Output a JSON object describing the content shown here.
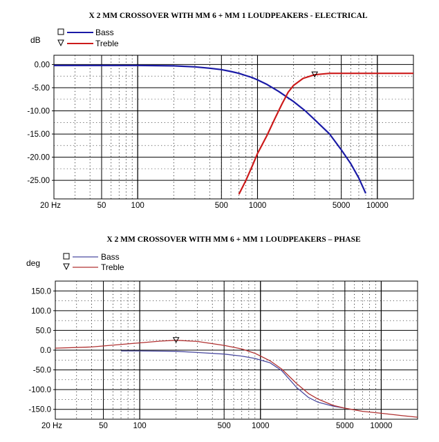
{
  "chart_data": [
    {
      "type": "line",
      "title": "X 2 MM CROSSOVER WITH MM 6 + MM 1 LOUDPEAKERS - ELECTRICAL",
      "ylabel": "dB",
      "xscale": "log",
      "xlim": [
        20,
        20000
      ],
      "ylim": [
        -29,
        2
      ],
      "grid": true,
      "legend_position": "top-left",
      "x_tick_labels": [
        {
          "value": 20,
          "label": "20 Hz"
        },
        {
          "value": 50,
          "label": "50"
        },
        {
          "value": 100,
          "label": "100"
        },
        {
          "value": 500,
          "label": "500"
        },
        {
          "value": 1000,
          "label": "1000"
        },
        {
          "value": 5000,
          "label": "5000"
        },
        {
          "value": 10000,
          "label": "10000"
        }
      ],
      "y_tick_labels": [
        {
          "value": 0,
          "label": "0.00"
        },
        {
          "value": -5,
          "label": "-5.00"
        },
        {
          "value": -10,
          "label": "-10.00"
        },
        {
          "value": -15,
          "label": "-15.00"
        },
        {
          "value": -20,
          "label": "-20.00"
        },
        {
          "value": -25,
          "label": "-25.00"
        }
      ],
      "series": [
        {
          "name": "Bass",
          "color": "#1a1aa6",
          "marker": "square",
          "x": [
            20,
            100,
            200,
            300,
            400,
            500,
            600,
            700,
            800,
            900,
            1000,
            1200,
            1500,
            2000,
            2500,
            3000,
            4000,
            5000,
            6000,
            7000,
            8000
          ],
          "y": [
            -0.2,
            -0.2,
            -0.3,
            -0.5,
            -0.8,
            -1.1,
            -1.5,
            -1.9,
            -2.4,
            -2.8,
            -3.3,
            -4.3,
            -5.8,
            -8.0,
            -10.0,
            -11.9,
            -15.0,
            -18.4,
            -21.4,
            -24.5,
            -27.8
          ]
        },
        {
          "name": "Treble",
          "color": "#cc1a1a",
          "marker": "triangle",
          "x": [
            700,
            800,
            900,
            1000,
            1200,
            1400,
            1600,
            1800,
            2000,
            2400,
            3000,
            4000,
            5000,
            10000,
            20000
          ],
          "y": [
            -28.0,
            -25.0,
            -22.0,
            -19.2,
            -15.3,
            -11.6,
            -8.5,
            -6.0,
            -4.5,
            -3.0,
            -2.2,
            -1.9,
            -1.9,
            -1.9,
            -1.9
          ]
        }
      ]
    },
    {
      "type": "line",
      "title": "X 2 MM CROSSOVER WITH MM 6 + MM 1 LOUDPEAKERS – PHASE",
      "ylabel": "deg",
      "xscale": "log",
      "xlim": [
        20,
        20000
      ],
      "ylim": [
        -175,
        175
      ],
      "grid": true,
      "legend_position": "top-left",
      "x_tick_labels": [
        {
          "value": 20,
          "label": "20 Hz"
        },
        {
          "value": 50,
          "label": "50"
        },
        {
          "value": 100,
          "label": "100"
        },
        {
          "value": 500,
          "label": "500"
        },
        {
          "value": 1000,
          "label": "1000"
        },
        {
          "value": 5000,
          "label": "5000"
        },
        {
          "value": 10000,
          "label": "10000"
        }
      ],
      "y_tick_labels": [
        {
          "value": 150,
          "label": "150.0"
        },
        {
          "value": 100,
          "label": "100.0"
        },
        {
          "value": 50,
          "label": "50.0"
        },
        {
          "value": 0,
          "label": "0.0"
        },
        {
          "value": -50,
          "label": "-50.0"
        },
        {
          "value": -100,
          "label": "-100.0"
        },
        {
          "value": -150,
          "label": "-150.0"
        }
      ],
      "series": [
        {
          "name": "Bass",
          "color": "#4a4aa0",
          "marker": "square",
          "x": [
            70,
            100,
            200,
            300,
            500,
            700,
            900,
            1200,
            1500,
            2000,
            2500,
            3000,
            4000,
            5000
          ],
          "y": [
            -2,
            -2,
            -3,
            -6,
            -10,
            -15,
            -21,
            -32,
            -52,
            -95,
            -120,
            -132,
            -142,
            -147
          ]
        },
        {
          "name": "Treble",
          "color": "#b03030",
          "marker": "triangle",
          "x": [
            20,
            40,
            80,
            150,
            200,
            300,
            500,
            700,
            900,
            1200,
            1500,
            2000,
            2500,
            3000,
            4000,
            5000,
            7000,
            10000,
            15000,
            20000
          ],
          "y": [
            5,
            8,
            16,
            23,
            25,
            22,
            12,
            3,
            -8,
            -27,
            -48,
            -85,
            -110,
            -124,
            -140,
            -147,
            -155,
            -160,
            -166,
            -170
          ]
        }
      ]
    }
  ]
}
